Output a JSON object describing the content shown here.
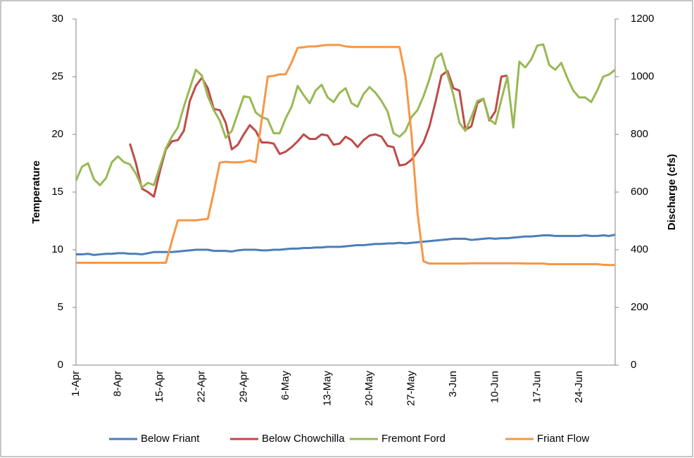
{
  "chart_data": {
    "type": "line",
    "ylabel": "Temperature",
    "y2label": "Discharge (cfs)",
    "categories": [
      "1-Apr",
      null,
      null,
      null,
      null,
      null,
      null,
      "8-Apr",
      null,
      null,
      null,
      null,
      null,
      null,
      "15-Apr",
      null,
      null,
      null,
      null,
      null,
      null,
      "22-Apr",
      null,
      null,
      null,
      null,
      null,
      null,
      "29-Apr",
      null,
      null,
      null,
      null,
      null,
      null,
      "6-May",
      null,
      null,
      null,
      null,
      null,
      null,
      "13-May",
      null,
      null,
      null,
      null,
      null,
      null,
      "20-May",
      null,
      null,
      null,
      null,
      null,
      null,
      "27-May",
      null,
      null,
      null,
      null,
      null,
      null,
      "3-Jun",
      null,
      null,
      null,
      null,
      null,
      null,
      "10-Jun",
      null,
      null,
      null,
      null,
      null,
      null,
      "17-Jun",
      null,
      null,
      null,
      null,
      null,
      null,
      "24-Jun",
      null,
      null,
      null,
      null,
      null,
      null
    ],
    "series": [
      {
        "name": "Below Friant",
        "color": "#4a7ebb",
        "values": [
          9.6,
          9.6,
          9.65,
          9.55,
          9.6,
          9.65,
          9.65,
          9.7,
          9.7,
          9.65,
          9.65,
          9.6,
          9.7,
          9.8,
          9.8,
          9.8,
          9.8,
          9.85,
          9.9,
          9.95,
          10.0,
          10.0,
          10.0,
          9.9,
          9.9,
          9.9,
          9.85,
          9.95,
          10.0,
          10.0,
          10.0,
          9.95,
          9.95,
          10.0,
          10.0,
          10.05,
          10.1,
          10.1,
          10.15,
          10.15,
          10.2,
          10.2,
          10.25,
          10.25,
          10.25,
          10.3,
          10.35,
          10.4,
          10.4,
          10.45,
          10.5,
          10.5,
          10.55,
          10.55,
          10.6,
          10.55,
          10.6,
          10.65,
          10.7,
          10.75,
          10.8,
          10.85,
          10.9,
          10.95,
          10.95,
          10.95,
          10.85,
          10.9,
          10.95,
          11.0,
          10.95,
          11.0,
          11.0,
          11.05,
          11.1,
          11.15,
          11.15,
          11.2,
          11.25,
          11.25,
          11.2,
          11.2,
          11.2,
          11.2,
          11.2,
          11.25,
          11.2,
          11.2,
          11.25,
          11.2,
          11.3
        ]
      },
      {
        "name": "Below Chowchilla",
        "color": "#be4b48",
        "values": [
          null,
          null,
          null,
          null,
          null,
          null,
          null,
          null,
          null,
          19.2,
          17.5,
          15.3,
          15.0,
          14.6,
          16.8,
          18.7,
          19.4,
          19.5,
          20.3,
          22.9,
          24.2,
          24.9,
          24.0,
          22.2,
          22.1,
          21.0,
          18.7,
          19.1,
          20.0,
          20.8,
          20.3,
          19.3,
          19.3,
          19.2,
          18.3,
          18.5,
          18.9,
          19.4,
          20.0,
          19.6,
          19.6,
          20.0,
          19.9,
          19.1,
          19.2,
          19.8,
          19.5,
          18.9,
          19.5,
          19.9,
          20.0,
          19.8,
          19.0,
          18.9,
          17.3,
          17.4,
          17.8,
          18.5,
          19.3,
          20.7,
          22.8,
          25.1,
          25.5,
          24.0,
          23.8,
          20.4,
          20.7,
          22.7,
          23.1,
          21.2,
          22.0,
          25.0,
          25.1,
          null,
          null,
          null,
          null,
          null,
          null,
          null,
          null,
          null,
          null,
          null,
          null,
          null,
          null,
          null,
          null,
          null,
          null
        ]
      },
      {
        "name": "Fremont Ford",
        "color": "#98b954",
        "values": [
          16.0,
          17.2,
          17.5,
          16.1,
          15.6,
          16.2,
          17.6,
          18.1,
          17.6,
          17.4,
          16.6,
          15.4,
          15.8,
          15.6,
          17.2,
          18.8,
          19.8,
          20.6,
          22.4,
          24.0,
          25.6,
          25.1,
          23.3,
          22.1,
          21.2,
          19.7,
          20.3,
          21.8,
          23.3,
          23.2,
          21.9,
          21.5,
          21.3,
          20.1,
          20.1,
          21.4,
          22.4,
          24.2,
          23.4,
          22.7,
          23.8,
          24.3,
          23.2,
          22.8,
          23.6,
          24.0,
          22.7,
          22.4,
          23.5,
          24.1,
          23.6,
          22.9,
          22.0,
          20.1,
          19.8,
          20.3,
          21.5,
          22.1,
          23.3,
          24.8,
          26.6,
          27.0,
          25.2,
          23.4,
          21.0,
          20.3,
          21.5,
          22.9,
          23.1,
          21.3,
          20.9,
          23.0,
          25.0,
          20.6,
          26.3,
          25.8,
          26.5,
          27.7,
          27.8,
          26.0,
          25.6,
          26.2,
          24.9,
          23.8,
          23.2,
          23.2,
          22.8,
          23.8,
          25.0,
          25.2,
          25.6
        ]
      },
      {
        "name": "Friant Flow",
        "color": "#f79646",
        "axis": "y2",
        "values": [
          355,
          355,
          355,
          355,
          355,
          355,
          355,
          355,
          355,
          355,
          355,
          355,
          355,
          355,
          355,
          355,
          430,
          502,
          502,
          502,
          502,
          505,
          507,
          600,
          702,
          705,
          703,
          703,
          705,
          710,
          703,
          850,
          1000,
          1003,
          1008,
          1008,
          1050,
          1100,
          1102,
          1105,
          1105,
          1108,
          1110,
          1110,
          1110,
          1105,
          1103,
          1103,
          1103,
          1103,
          1103,
          1103,
          1103,
          1103,
          1103,
          1000,
          800,
          530,
          360,
          352,
          352,
          352,
          352,
          352,
          352,
          352,
          353,
          353,
          353,
          353,
          353,
          353,
          353,
          353,
          353,
          352,
          352,
          352,
          352,
          350,
          350,
          350,
          350,
          350,
          350,
          350,
          350,
          350,
          348,
          347,
          347
        ]
      }
    ],
    "ylim": [
      0,
      30
    ],
    "yticks": [
      0,
      5,
      10,
      15,
      20,
      25,
      30
    ],
    "y2lim": [
      0,
      1200
    ],
    "y2ticks": [
      0,
      200,
      400,
      600,
      800,
      1000,
      1200
    ],
    "grid": false,
    "legend": "bottom"
  }
}
